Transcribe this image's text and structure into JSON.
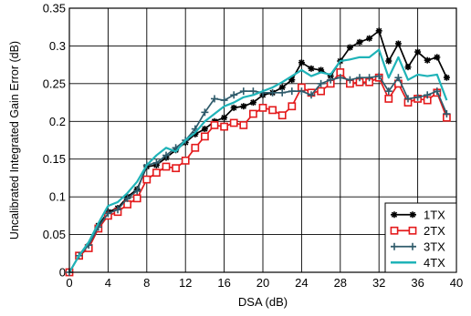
{
  "chart_data": {
    "type": "line",
    "title": "",
    "xlabel": "DSA (dB)",
    "ylabel": "Uncalibrated Integrated Gain Error (dB)",
    "xlim": [
      0,
      40
    ],
    "ylim": [
      0,
      0.35
    ],
    "xticks": [
      0,
      4,
      8,
      12,
      16,
      20,
      24,
      28,
      32,
      36,
      40
    ],
    "yticks": [
      0,
      0.05,
      0.1,
      0.15,
      0.2,
      0.25,
      0.3,
      0.35
    ],
    "xtick_labels": [
      "0",
      "4",
      "8",
      "12",
      "16",
      "20",
      "24",
      "28",
      "32",
      "36",
      "40"
    ],
    "ytick_labels": [
      "0",
      "0.05",
      "0.1",
      "0.15",
      "0.2",
      "0.25",
      "0.3",
      "0.35"
    ],
    "grid": true,
    "legend_position": "bottom-right",
    "x": [
      0,
      1,
      2,
      3,
      4,
      5,
      6,
      7,
      8,
      9,
      10,
      11,
      12,
      13,
      14,
      15,
      16,
      17,
      18,
      19,
      20,
      21,
      22,
      23,
      24,
      25,
      26,
      27,
      28,
      29,
      30,
      31,
      32,
      33,
      34,
      35,
      36,
      37,
      38,
      39
    ],
    "series": [
      {
        "name": "1TX",
        "color": "#000000",
        "marker": "asterisk",
        "values": [
          0,
          0.022,
          0.035,
          0.062,
          0.08,
          0.085,
          0.1,
          0.11,
          0.14,
          0.142,
          0.152,
          0.162,
          0.172,
          0.183,
          0.19,
          0.2,
          0.205,
          0.218,
          0.22,
          0.225,
          0.235,
          0.238,
          0.245,
          0.255,
          0.278,
          0.27,
          0.268,
          0.26,
          0.28,
          0.298,
          0.305,
          0.31,
          0.32,
          0.28,
          0.303,
          0.272,
          0.292,
          0.281,
          0.285,
          0.258
        ]
      },
      {
        "name": "2TX",
        "color": "#e41a1c",
        "marker": "square",
        "values": [
          0,
          0.022,
          0.032,
          0.058,
          0.075,
          0.08,
          0.09,
          0.098,
          0.123,
          0.132,
          0.14,
          0.138,
          0.148,
          0.165,
          0.18,
          0.195,
          0.193,
          0.198,
          0.195,
          0.21,
          0.218,
          0.215,
          0.208,
          0.22,
          0.245,
          0.238,
          0.24,
          0.25,
          0.265,
          0.25,
          0.252,
          0.252,
          0.258,
          0.23,
          0.25,
          0.225,
          0.23,
          0.228,
          0.238,
          0.205
        ]
      },
      {
        "name": "3TX",
        "color": "#2f5b6b",
        "marker": "plus",
        "values": [
          0,
          0.022,
          0.036,
          0.06,
          0.078,
          0.083,
          0.098,
          0.108,
          0.142,
          0.145,
          0.155,
          0.165,
          0.175,
          0.19,
          0.212,
          0.23,
          0.228,
          0.235,
          0.24,
          0.24,
          0.238,
          0.238,
          0.238,
          0.24,
          0.24,
          0.235,
          0.25,
          0.255,
          0.258,
          0.255,
          0.258,
          0.258,
          0.26,
          0.24,
          0.258,
          0.23,
          0.232,
          0.235,
          0.24,
          0.21
        ]
      },
      {
        "name": "4TX",
        "color": "#1fb3b8",
        "marker": "none",
        "values": [
          0,
          0.022,
          0.04,
          0.065,
          0.088,
          0.093,
          0.105,
          0.12,
          0.142,
          0.155,
          0.165,
          0.16,
          0.175,
          0.185,
          0.2,
          0.21,
          0.22,
          0.225,
          0.232,
          0.235,
          0.24,
          0.245,
          0.252,
          0.26,
          0.268,
          0.26,
          0.265,
          0.262,
          0.28,
          0.282,
          0.285,
          0.285,
          0.295,
          0.258,
          0.285,
          0.255,
          0.262,
          0.26,
          0.262,
          0.228
        ]
      }
    ]
  }
}
